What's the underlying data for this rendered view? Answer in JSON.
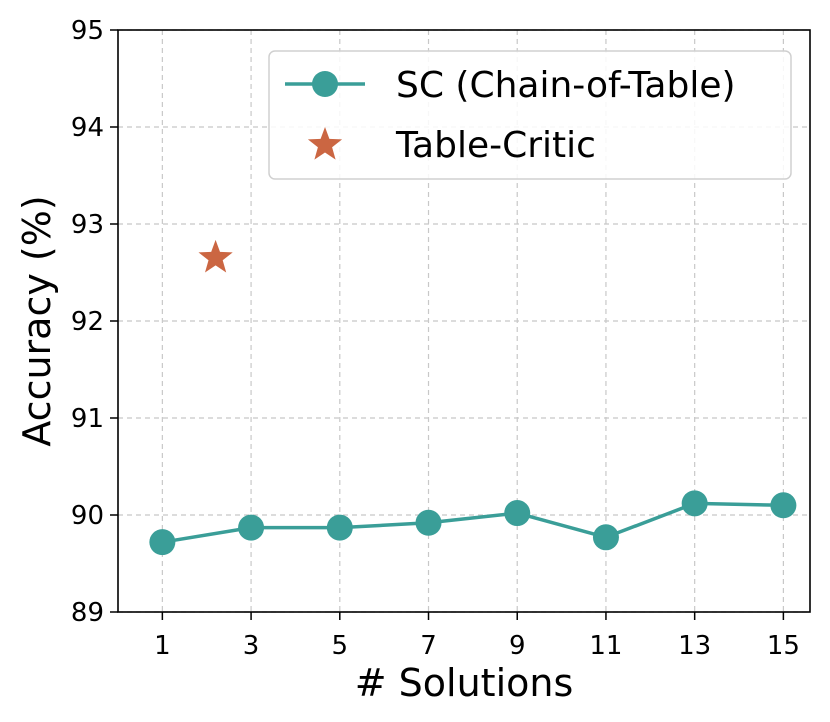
{
  "chart_data": {
    "type": "line",
    "xlabel": "# Solutions",
    "ylabel": "Accuracy (%)",
    "xticks": [
      1,
      3,
      5,
      7,
      9,
      11,
      13,
      15
    ],
    "yticks": [
      89,
      90,
      91,
      92,
      93,
      94,
      95
    ],
    "xlim": [
      0.0,
      15.6
    ],
    "ylim": [
      89,
      95
    ],
    "grid": true,
    "legend_position": "top-right",
    "series": [
      {
        "name": "SC (Chain-of-Table)",
        "type": "line",
        "marker": "circle",
        "color": "#3a9e98",
        "x": [
          1,
          3,
          5,
          7,
          9,
          11,
          13,
          15
        ],
        "y": [
          89.72,
          89.87,
          89.87,
          89.92,
          90.02,
          89.77,
          90.12,
          90.1
        ]
      },
      {
        "name": "Table-Critic",
        "type": "scatter",
        "marker": "star",
        "color": "#cb6642",
        "x": [
          2.2
        ],
        "y": [
          92.65
        ]
      }
    ]
  }
}
